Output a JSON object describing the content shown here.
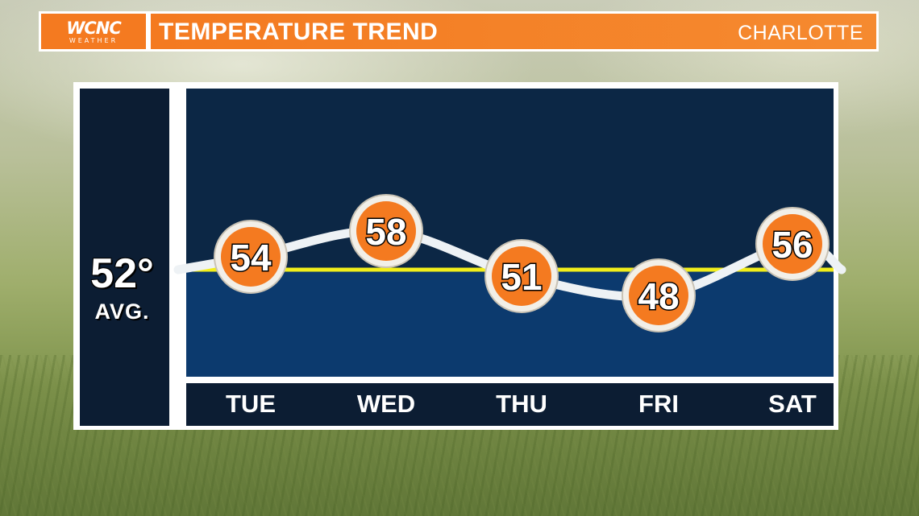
{
  "header": {
    "logo_text": "WCNC",
    "logo_sub": "WEATHER",
    "title": "TEMPERATURE TREND",
    "city": "CHARLOTTE"
  },
  "average": {
    "value": "52°",
    "label": "AVG."
  },
  "colors": {
    "accent_orange": "#f47a20",
    "avg_line": "#f2ee1a",
    "panel_dark": "#0c1d33",
    "above_avg_fill": "#0c2745",
    "below_avg_fill": "#0c3a6e"
  },
  "chart_data": {
    "type": "line",
    "title": "TEMPERATURE TREND",
    "categories": [
      "TUE",
      "WED",
      "THU",
      "FRI",
      "SAT"
    ],
    "values": [
      54,
      58,
      51,
      48,
      56
    ],
    "average": 52,
    "average_label": "52° AVG."
  }
}
